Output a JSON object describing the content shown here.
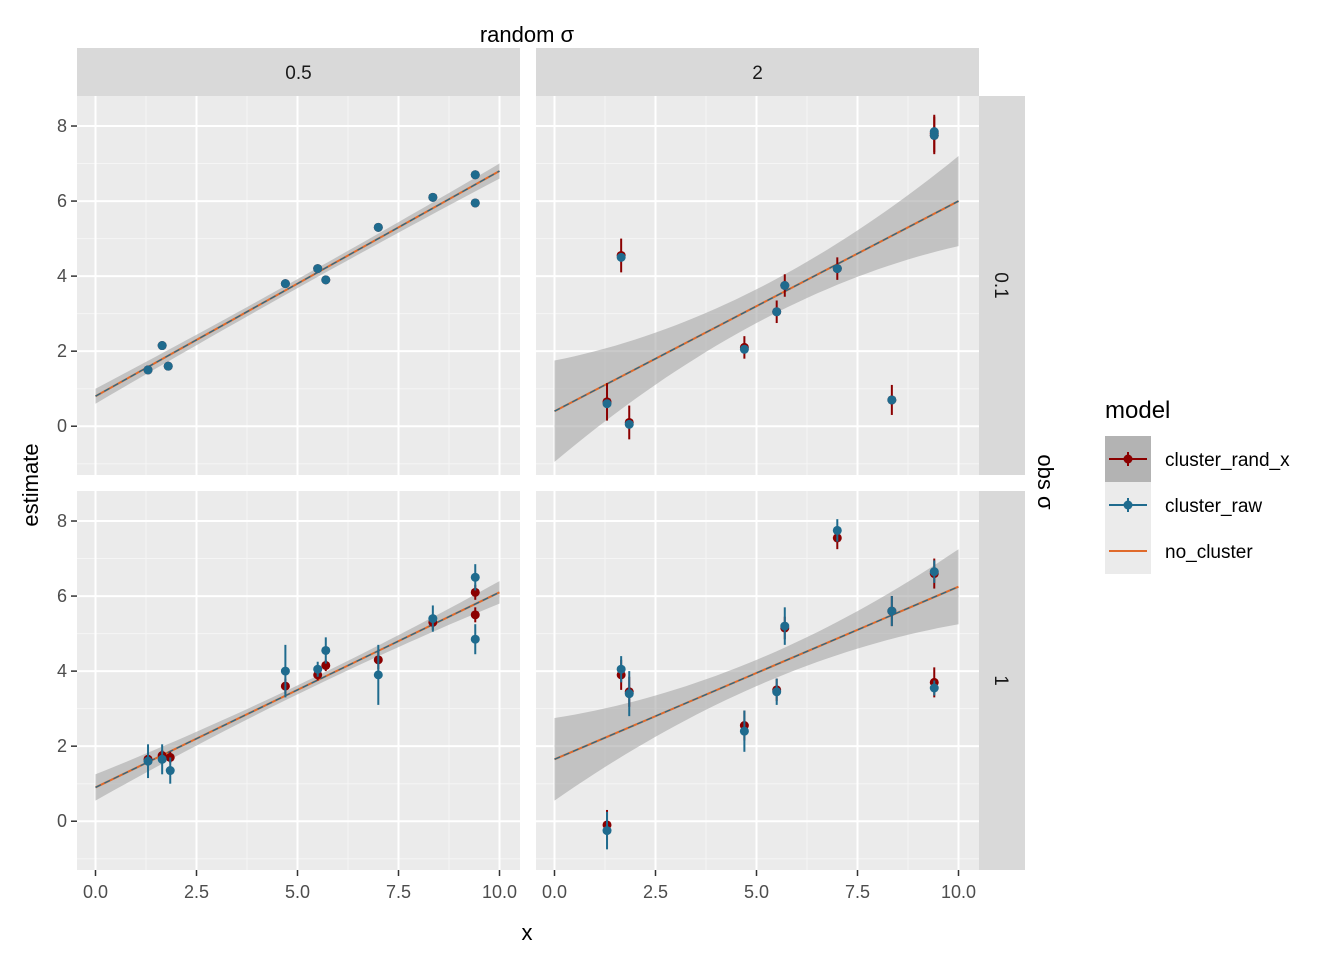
{
  "chart_data": {
    "type": "scatter",
    "title": "",
    "xlabel": "x",
    "ylabel": "estimate",
    "col_facet_label": "random σ",
    "row_facet_label": "obs σ",
    "xlim": [
      0,
      10
    ],
    "ylim": [
      -1.3,
      8.8
    ],
    "x_ticks": [
      "0.0",
      "2.5",
      "5.0",
      "7.5",
      "10.0"
    ],
    "y_ticks": [
      "0",
      "2",
      "4",
      "6",
      "8"
    ],
    "col_values": [
      "0.5",
      "2"
    ],
    "row_values": [
      "0.1",
      "1"
    ],
    "grid": true,
    "legend": {
      "title": "model",
      "position": "right",
      "entries": [
        "cluster_rand_x",
        "cluster_raw",
        "no_cluster"
      ]
    },
    "colors": {
      "cluster_rand_x": "#8b0000",
      "cluster_raw": "#1f6b8e",
      "no_cluster": "#e06a2b",
      "ribbon": "#a6a6a6",
      "panel_bg": "#ebebeb",
      "strip_bg": "#d9d9d9"
    },
    "panels": [
      {
        "col": "0.5",
        "row": "0.1",
        "fit": [
          [
            0,
            0.8
          ],
          [
            10,
            6.8
          ]
        ],
        "ribbon_half_width": [
          0.2,
          0.12,
          0.2
        ],
        "cluster_rand_x": [
          [
            1.3,
            1.5,
            0.05
          ],
          [
            1.65,
            2.15,
            0.05
          ],
          [
            1.8,
            1.6,
            0.05
          ],
          [
            4.7,
            3.8,
            0.05
          ],
          [
            5.5,
            4.2,
            0.05
          ],
          [
            5.7,
            3.9,
            0.05
          ],
          [
            7.0,
            5.3,
            0.05
          ],
          [
            8.35,
            6.1,
            0.05
          ],
          [
            9.4,
            6.7,
            0.05
          ],
          [
            9.4,
            5.95,
            0.05
          ]
        ],
        "cluster_raw": [
          [
            1.3,
            1.5,
            0.05
          ],
          [
            1.65,
            2.15,
            0.05
          ],
          [
            1.8,
            1.6,
            0.05
          ],
          [
            4.7,
            3.8,
            0.05
          ],
          [
            5.5,
            4.2,
            0.05
          ],
          [
            5.7,
            3.9,
            0.05
          ],
          [
            7.0,
            5.3,
            0.05
          ],
          [
            8.35,
            6.1,
            0.05
          ],
          [
            9.4,
            6.7,
            0.05
          ],
          [
            9.4,
            5.95,
            0.05
          ]
        ]
      },
      {
        "col": "2",
        "row": "0.1",
        "fit": [
          [
            0,
            0.4
          ],
          [
            10,
            6.0
          ]
        ],
        "ribbon_half_width": [
          1.35,
          0.45,
          1.2
        ],
        "cluster_rand_x": [
          [
            1.3,
            0.65,
            0.5
          ],
          [
            1.65,
            4.55,
            0.45
          ],
          [
            1.85,
            0.1,
            0.45
          ],
          [
            4.7,
            2.1,
            0.3
          ],
          [
            5.5,
            3.05,
            0.3
          ],
          [
            5.7,
            3.75,
            0.3
          ],
          [
            7.0,
            4.2,
            0.3
          ],
          [
            8.35,
            0.7,
            0.4
          ],
          [
            9.4,
            7.8,
            0.5
          ],
          [
            9.4,
            7.75,
            0.5
          ]
        ],
        "cluster_raw": [
          [
            1.3,
            0.6,
            0.05
          ],
          [
            1.65,
            4.5,
            0.05
          ],
          [
            1.85,
            0.05,
            0.05
          ],
          [
            4.7,
            2.05,
            0.05
          ],
          [
            5.5,
            3.05,
            0.05
          ],
          [
            5.7,
            3.75,
            0.05
          ],
          [
            7.0,
            4.2,
            0.05
          ],
          [
            8.35,
            0.7,
            0.05
          ],
          [
            9.4,
            7.85,
            0.05
          ],
          [
            9.4,
            7.75,
            0.05
          ]
        ]
      },
      {
        "col": "0.5",
        "row": "1",
        "fit": [
          [
            0,
            0.9
          ],
          [
            10,
            6.1
          ]
        ],
        "ribbon_half_width": [
          0.35,
          0.12,
          0.3
        ],
        "cluster_rand_x": [
          [
            1.3,
            1.65,
            0.15
          ],
          [
            1.65,
            1.75,
            0.15
          ],
          [
            1.85,
            1.7,
            0.15
          ],
          [
            4.7,
            3.6,
            0.2
          ],
          [
            5.5,
            3.9,
            0.15
          ],
          [
            5.7,
            4.15,
            0.15
          ],
          [
            7.0,
            4.3,
            0.25
          ],
          [
            8.35,
            5.3,
            0.2
          ],
          [
            9.4,
            6.1,
            0.2
          ],
          [
            9.4,
            5.5,
            0.2
          ]
        ],
        "cluster_raw": [
          [
            1.3,
            1.6,
            0.45
          ],
          [
            1.65,
            1.65,
            0.4
          ],
          [
            1.85,
            1.35,
            0.35
          ],
          [
            4.7,
            4.0,
            0.7
          ],
          [
            5.5,
            4.05,
            0.2
          ],
          [
            5.7,
            4.55,
            0.35
          ],
          [
            7.0,
            3.9,
            0.8
          ],
          [
            8.35,
            5.4,
            0.35
          ],
          [
            9.4,
            6.5,
            0.35
          ],
          [
            9.4,
            4.85,
            0.4
          ]
        ]
      },
      {
        "col": "2",
        "row": "1",
        "fit": [
          [
            0,
            1.65
          ],
          [
            10,
            6.25
          ]
        ],
        "ribbon_half_width": [
          1.1,
          0.35,
          1.0
        ],
        "cluster_rand_x": [
          [
            1.3,
            -0.1,
            0.4
          ],
          [
            1.65,
            3.9,
            0.4
          ],
          [
            1.85,
            3.45,
            0.4
          ],
          [
            4.7,
            2.55,
            0.4
          ],
          [
            5.5,
            3.5,
            0.3
          ],
          [
            5.7,
            5.15,
            0.3
          ],
          [
            7.0,
            7.55,
            0.3
          ],
          [
            8.35,
            5.6,
            0.4
          ],
          [
            9.4,
            3.7,
            0.4
          ],
          [
            9.4,
            6.6,
            0.4
          ]
        ],
        "cluster_raw": [
          [
            1.3,
            -0.25,
            0.5
          ],
          [
            1.65,
            4.05,
            0.35
          ],
          [
            1.85,
            3.4,
            0.6
          ],
          [
            4.7,
            2.4,
            0.55
          ],
          [
            5.5,
            3.45,
            0.35
          ],
          [
            5.7,
            5.2,
            0.5
          ],
          [
            7.0,
            7.75,
            0.3
          ],
          [
            8.35,
            5.6,
            0.4
          ],
          [
            9.4,
            3.55,
            0.2
          ],
          [
            9.4,
            6.65,
            0.3
          ]
        ]
      }
    ]
  }
}
